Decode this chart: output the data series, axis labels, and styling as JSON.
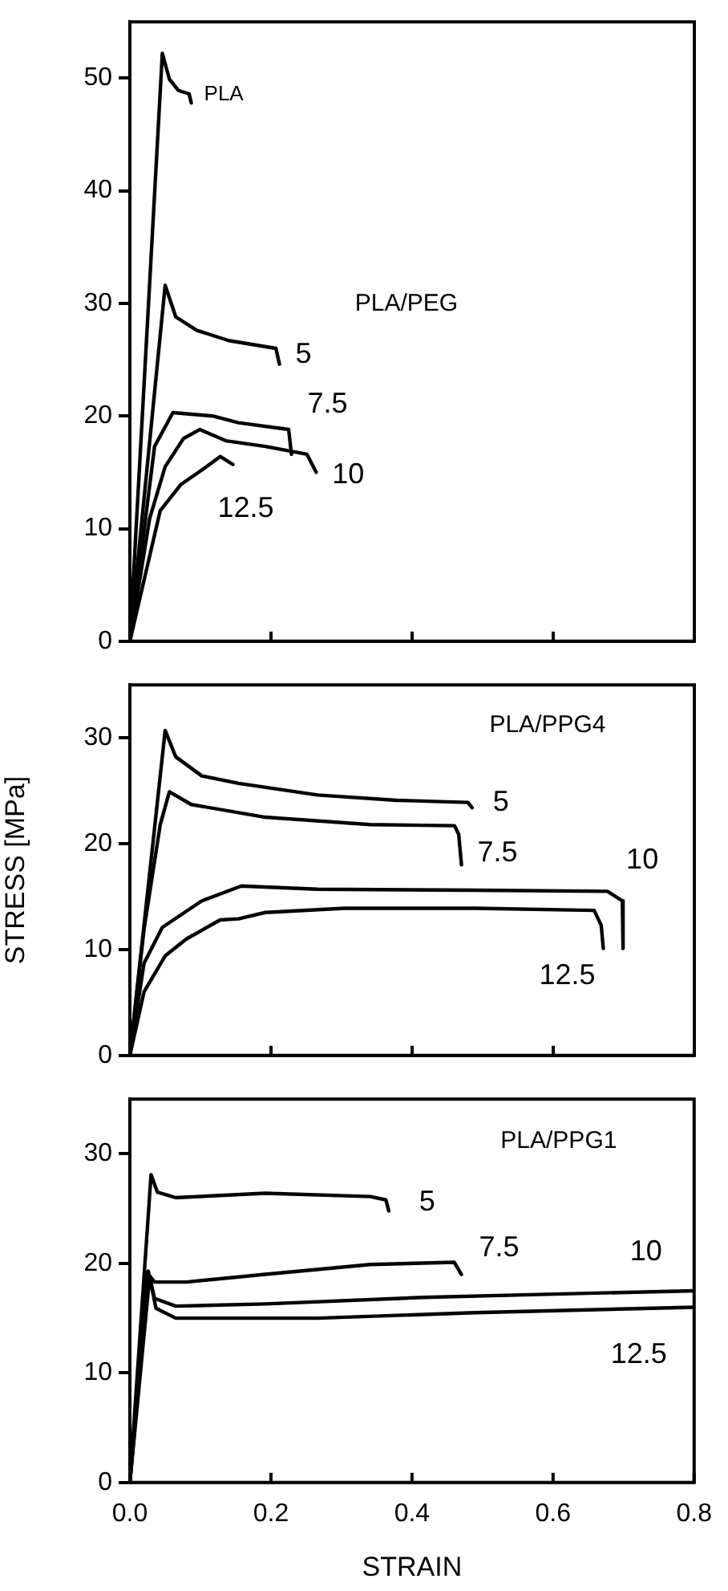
{
  "chart_data": [
    {
      "type": "line",
      "xlim": [
        0,
        0.8
      ],
      "xticks": [
        0,
        0.2,
        0.4,
        0.6,
        0.8
      ],
      "ylim": [
        0,
        55
      ],
      "yticks": [
        0,
        10,
        20,
        30,
        40,
        50
      ],
      "tick_labels": "y",
      "annotations": [
        "PLA/PEG"
      ],
      "series": [
        {
          "name": "PLA",
          "color": "#000000",
          "x": [
            0,
            0.046,
            0.056,
            0.069,
            0.084,
            0.087
          ],
          "values": [
            0,
            52.2,
            49.9,
            48.9,
            48.6,
            47.8
          ]
        },
        {
          "name": "5",
          "color": "#000000",
          "x": [
            0,
            0.05,
            0.065,
            0.095,
            0.14,
            0.207,
            0.212
          ],
          "values": [
            0,
            31.6,
            28.8,
            27.6,
            26.7,
            26.0,
            24.6
          ]
        },
        {
          "name": "7.5",
          "color": "#000000",
          "x": [
            0,
            0.013,
            0.035,
            0.061,
            0.117,
            0.154,
            0.225,
            0.229
          ],
          "values": [
            0,
            6.3,
            17.3,
            20.3,
            20.0,
            19.4,
            18.8,
            16.6
          ]
        },
        {
          "name": "10",
          "color": "#000000",
          "x": [
            0,
            0.028,
            0.05,
            0.076,
            0.099,
            0.136,
            0.192,
            0.251,
            0.264
          ],
          "values": [
            0,
            10.9,
            15.5,
            18.0,
            18.8,
            17.8,
            17.3,
            16.6,
            15.0
          ]
        },
        {
          "name": "12.5",
          "color": "#000000",
          "x": [
            0,
            0.02,
            0.043,
            0.072,
            0.102,
            0.128,
            0.146
          ],
          "values": [
            0,
            5.4,
            11.6,
            13.9,
            15.2,
            16.4,
            15.7
          ]
        }
      ]
    },
    {
      "type": "line",
      "xlim": [
        0,
        0.8
      ],
      "xticks": [
        0,
        0.2,
        0.4,
        0.6,
        0.8
      ],
      "ylim": [
        0,
        35
      ],
      "yticks": [
        0,
        10,
        20,
        30
      ],
      "tick_labels": "y",
      "ylabel": "STRESS [MPa]",
      "annotations": [
        "PLA/PPG4"
      ],
      "series": [
        {
          "name": "5",
          "color": "#000000",
          "x": [
            0,
            0.05,
            0.065,
            0.102,
            0.154,
            0.266,
            0.378,
            0.479,
            0.485
          ],
          "values": [
            0,
            30.7,
            28.2,
            26.4,
            25.7,
            24.6,
            24.1,
            23.9,
            23.4
          ]
        },
        {
          "name": "7.5",
          "color": "#000000",
          "x": [
            0,
            0.02,
            0.043,
            0.056,
            0.087,
            0.192,
            0.341,
            0.46,
            0.466,
            0.47
          ],
          "values": [
            0,
            11.9,
            21.8,
            24.9,
            23.7,
            22.5,
            21.8,
            21.7,
            20.9,
            18.0
          ]
        },
        {
          "name": "10",
          "color": "#000000",
          "x": [
            0,
            0.02,
            0.046,
            0.102,
            0.158,
            0.266,
            0.49,
            0.677,
            0.698,
            0.699
          ],
          "values": [
            0,
            8.7,
            12.1,
            14.6,
            16.0,
            15.7,
            15.6,
            15.5,
            14.6,
            10.1
          ]
        },
        {
          "name": "12.5",
          "color": "#000000",
          "x": [
            0,
            0.02,
            0.05,
            0.08,
            0.128,
            0.154,
            0.192,
            0.304,
            0.49,
            0.658,
            0.668,
            0.671
          ],
          "values": [
            0,
            6.0,
            9.4,
            11.0,
            12.8,
            12.9,
            13.5,
            13.9,
            13.9,
            13.7,
            12.3,
            10.1
          ]
        }
      ]
    },
    {
      "type": "line",
      "xlim": [
        0,
        0.8
      ],
      "xticks": [
        {
          "value": 0,
          "label": "0.0"
        },
        0.2,
        0.4,
        0.6,
        0.8
      ],
      "ylim": [
        0,
        35
      ],
      "yticks": [
        0,
        10,
        20,
        30
      ],
      "xlabel": "STRAIN",
      "annotations": [
        "PLA/PPG1"
      ],
      "series": [
        {
          "name": "5",
          "color": "#000000",
          "x": [
            0,
            0.03,
            0.039,
            0.065,
            0.192,
            0.341,
            0.363,
            0.367
          ],
          "values": [
            0,
            28.1,
            26.5,
            26.0,
            26.4,
            26.1,
            25.8,
            24.8
          ]
        },
        {
          "name": "7.5",
          "color": "#000000",
          "x": [
            0,
            0.024,
            0.035,
            0.08,
            0.192,
            0.341,
            0.46,
            0.47
          ],
          "values": [
            0,
            19.2,
            18.3,
            18.3,
            19.0,
            19.9,
            20.1,
            19.0
          ]
        },
        {
          "name": "10",
          "color": "#000000",
          "x": [
            0,
            0.026,
            0.035,
            0.065,
            0.192,
            0.416,
            0.602,
            0.8
          ],
          "values": [
            0,
            19.3,
            16.8,
            16.1,
            16.3,
            16.9,
            17.2,
            17.5
          ]
        },
        {
          "name": "12.5",
          "color": "#000000",
          "x": [
            0,
            0.028,
            0.037,
            0.065,
            0.266,
            0.49,
            0.8
          ],
          "values": [
            0,
            18.8,
            15.9,
            15.0,
            15.0,
            15.5,
            16.0
          ]
        }
      ]
    }
  ]
}
